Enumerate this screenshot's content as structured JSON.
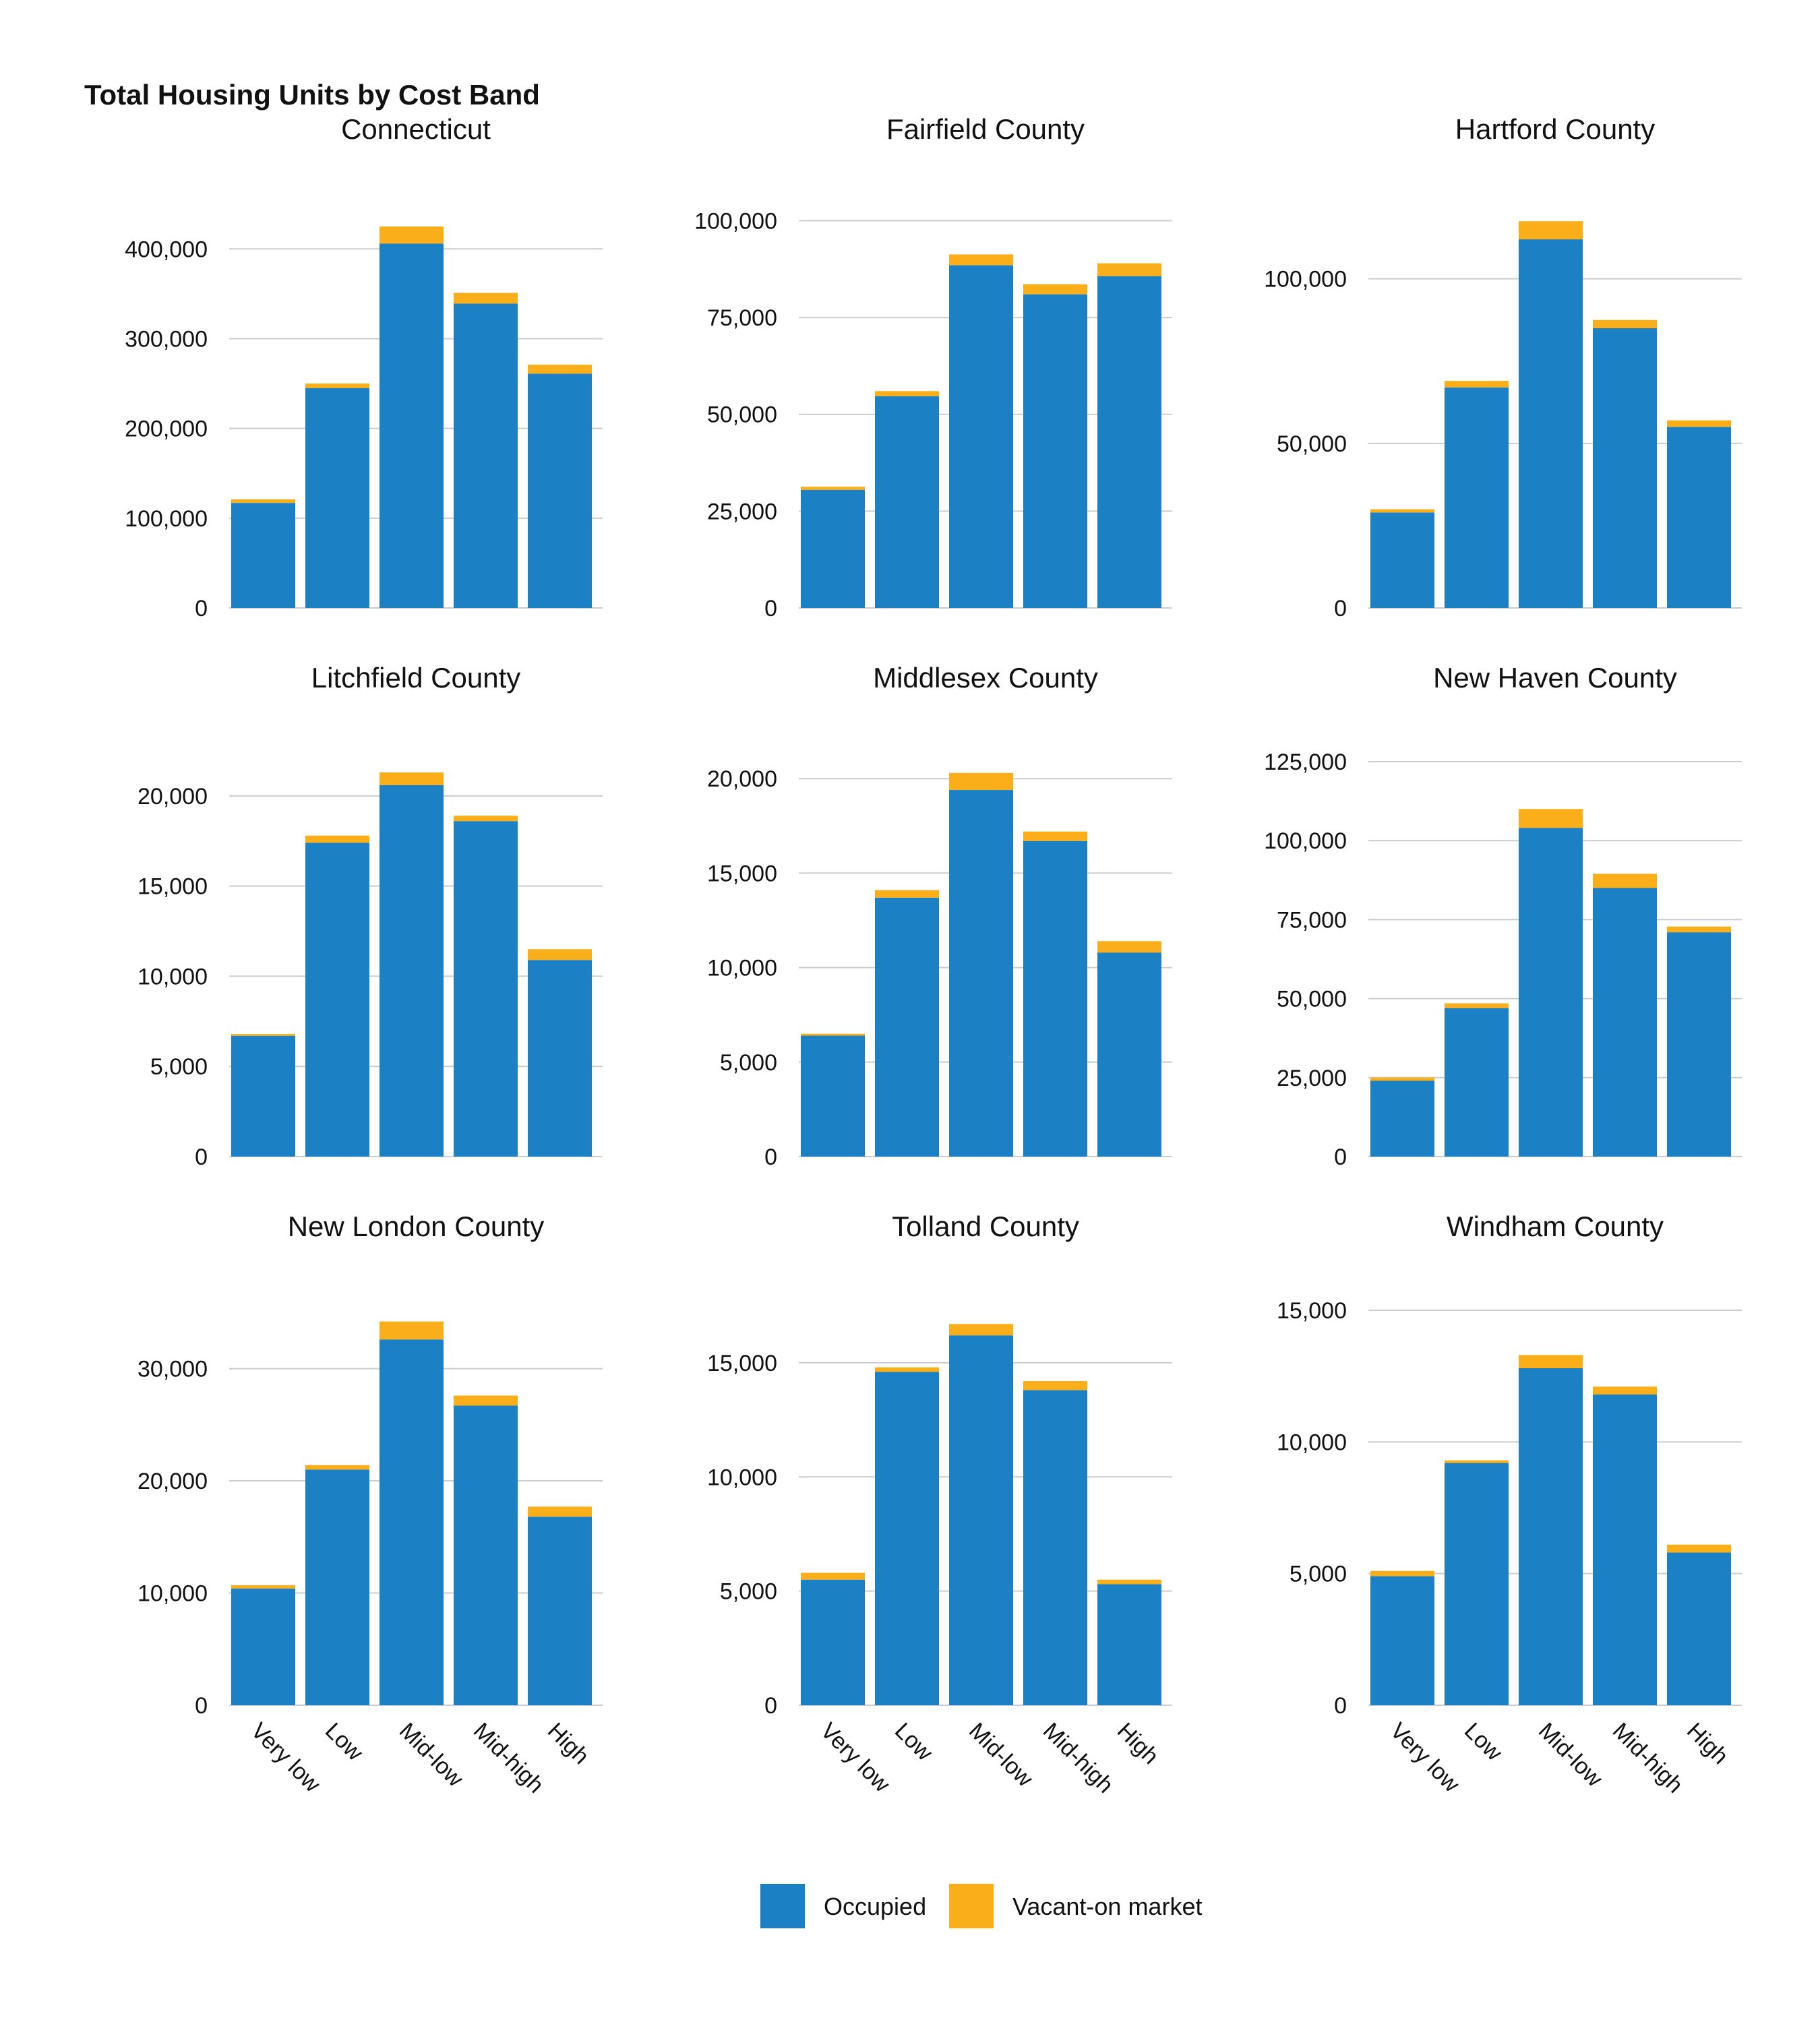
{
  "chart_data": {
    "type": "bar",
    "stacked": true,
    "title": "Total Housing Units by Cost Band",
    "categories": [
      "Very low",
      "Low",
      "Mid-low",
      "Mid-high",
      "High"
    ],
    "legend": {
      "placement": "bottom",
      "entries": [
        "Occupied",
        "Vacant-on market"
      ]
    },
    "colors": {
      "Occupied": "#1b80c4",
      "Vacant-on market": "#f9ae1a",
      "grid": "#cccccc"
    },
    "grid": true,
    "panels": [
      {
        "title": "Connecticut",
        "ylim": [
          0,
          440000
        ],
        "yticks": [
          0,
          100000,
          200000,
          300000,
          400000
        ],
        "ytick_labels": [
          "0",
          "100,000",
          "200,000",
          "300,000",
          "400,000"
        ],
        "series": [
          {
            "name": "Occupied",
            "values": [
              117000,
              245000,
              406000,
              339000,
              261000
            ]
          },
          {
            "name": "Vacant-on market",
            "values": [
              4000,
              5000,
              19000,
              12000,
              10000
            ]
          }
        ]
      },
      {
        "title": "Fairfield County",
        "ylim": [
          0,
          102000
        ],
        "yticks": [
          0,
          25000,
          50000,
          75000,
          100000
        ],
        "ytick_labels": [
          "0",
          "25,000",
          "50,000",
          "75,000",
          "100,000"
        ],
        "series": [
          {
            "name": "Occupied",
            "values": [
              30500,
              54700,
              88500,
              81000,
              85700
            ]
          },
          {
            "name": "Vacant-on market",
            "values": [
              800,
              1300,
              2800,
              2600,
              3300
            ]
          }
        ]
      },
      {
        "title": "Hartford County",
        "ylim": [
          0,
          120000
        ],
        "yticks": [
          0,
          50000,
          100000
        ],
        "ytick_labels": [
          "0",
          "50,000",
          "100,000"
        ],
        "series": [
          {
            "name": "Occupied",
            "values": [
              29000,
              67000,
              112000,
              85000,
              55000
            ]
          },
          {
            "name": "Vacant-on market",
            "values": [
              1000,
              2000,
              5500,
              2500,
              2000
            ]
          }
        ]
      },
      {
        "title": "Litchfield County",
        "ylim": [
          0,
          21900
        ],
        "yticks": [
          0,
          5000,
          10000,
          15000,
          20000
        ],
        "ytick_labels": [
          "0",
          "5,000",
          "10,000",
          "15,000",
          "20,000"
        ],
        "series": [
          {
            "name": "Occupied",
            "values": [
              6700,
              17400,
              20600,
              18600,
              10900
            ]
          },
          {
            "name": "Vacant-on market",
            "values": [
              100,
              400,
              700,
              300,
              600
            ]
          }
        ]
      },
      {
        "title": "Middlesex County",
        "ylim": [
          0,
          20900
        ],
        "yticks": [
          0,
          5000,
          10000,
          15000,
          20000
        ],
        "ytick_labels": [
          "0",
          "5,000",
          "10,000",
          "15,000",
          "20,000"
        ],
        "series": [
          {
            "name": "Occupied",
            "values": [
              6400,
              13700,
              19400,
              16700,
              10800
            ]
          },
          {
            "name": "Vacant-on market",
            "values": [
              100,
              400,
              900,
              500,
              600
            ]
          }
        ]
      },
      {
        "title": "New Haven County",
        "ylim": [
          0,
          125000
        ],
        "yticks": [
          0,
          25000,
          50000,
          75000,
          100000,
          125000
        ],
        "ytick_labels": [
          "0",
          "25,000",
          "50,000",
          "75,000",
          "100,000",
          "125,000"
        ],
        "series": [
          {
            "name": "Occupied",
            "values": [
              24000,
              47000,
              104000,
              85000,
              71000
            ]
          },
          {
            "name": "Vacant-on market",
            "values": [
              1000,
              1500,
              6000,
              4500,
              1800
            ]
          }
        ]
      },
      {
        "title": "New London County",
        "ylim": [
          0,
          35200
        ],
        "yticks": [
          0,
          10000,
          20000,
          30000
        ],
        "ytick_labels": [
          "0",
          "10,000",
          "20,000",
          "30,000"
        ],
        "series": [
          {
            "name": "Occupied",
            "values": [
              10400,
              21000,
              32600,
              26700,
              16800
            ]
          },
          {
            "name": "Vacant-on market",
            "values": [
              300,
              400,
              1600,
              900,
              900
            ]
          }
        ]
      },
      {
        "title": "Tolland County",
        "ylim": [
          0,
          17300
        ],
        "yticks": [
          0,
          5000,
          10000,
          15000
        ],
        "ytick_labels": [
          "0",
          "5,000",
          "10,000",
          "15,000"
        ],
        "series": [
          {
            "name": "Occupied",
            "values": [
              5500,
              14600,
              16200,
              13800,
              5300
            ]
          },
          {
            "name": "Vacant-on market",
            "values": [
              300,
              200,
              500,
              400,
              200
            ]
          }
        ]
      },
      {
        "title": "Windham County",
        "ylim": [
          0,
          15000
        ],
        "yticks": [
          0,
          5000,
          10000,
          15000
        ],
        "ytick_labels": [
          "0",
          "5,000",
          "10,000",
          "15,000"
        ],
        "series": [
          {
            "name": "Occupied",
            "values": [
              4900,
              9200,
              12800,
              11800,
              5800
            ]
          },
          {
            "name": "Vacant-on market",
            "values": [
              200,
              100,
              500,
              300,
              300
            ]
          }
        ]
      }
    ]
  }
}
